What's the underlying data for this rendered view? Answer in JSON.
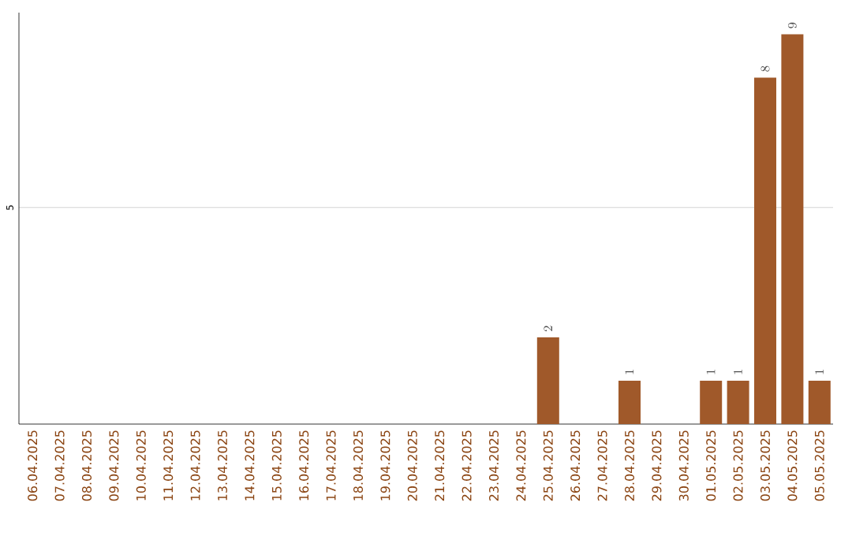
{
  "chart_data": {
    "type": "bar",
    "categories": [
      "06.04.2025",
      "07.04.2025",
      "08.04.2025",
      "09.04.2025",
      "10.04.2025",
      "11.04.2025",
      "12.04.2025",
      "13.04.2025",
      "14.04.2025",
      "15.04.2025",
      "16.04.2025",
      "17.04.2025",
      "18.04.2025",
      "19.04.2025",
      "20.04.2025",
      "21.04.2025",
      "22.04.2025",
      "23.04.2025",
      "24.04.2025",
      "25.04.2025",
      "26.04.2025",
      "27.04.2025",
      "28.04.2025",
      "29.04.2025",
      "30.04.2025",
      "01.05.2025",
      "02.05.2025",
      "03.05.2025",
      "04.05.2025",
      "05.05.2025"
    ],
    "values": [
      null,
      null,
      null,
      null,
      null,
      null,
      null,
      null,
      null,
      null,
      null,
      null,
      null,
      null,
      null,
      null,
      null,
      null,
      null,
      2,
      null,
      null,
      1,
      null,
      null,
      1,
      1,
      8,
      9,
      1
    ],
    "data_labels": true,
    "color": "#a0592a",
    "ylim": [
      0,
      9.5
    ],
    "yticks": [
      5
    ],
    "grid": "y"
  }
}
